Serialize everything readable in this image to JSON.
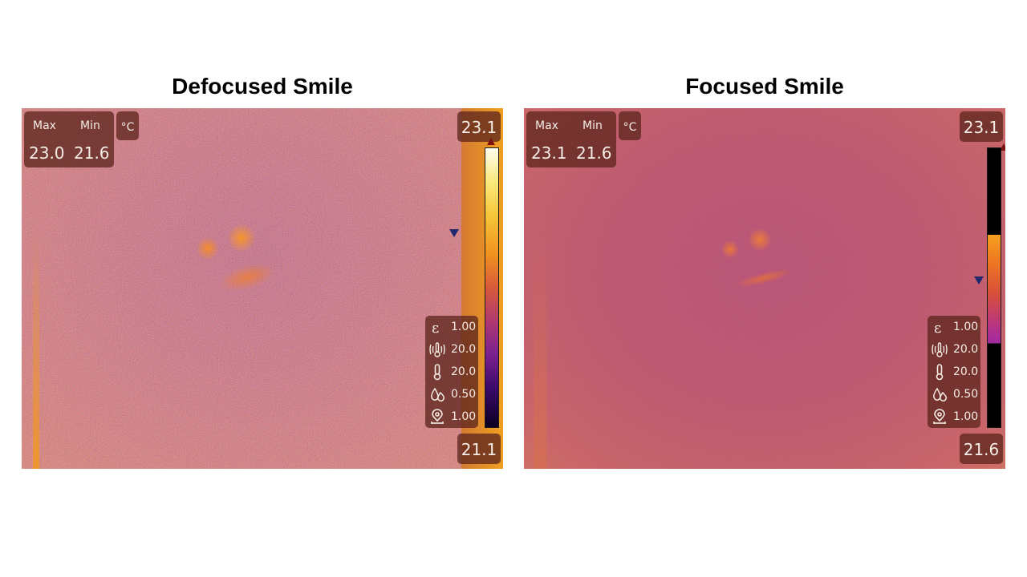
{
  "panels": [
    {
      "title": "Defocused Smile",
      "max_label": "Max",
      "min_label": "Min",
      "max_value": "23.0",
      "min_value": "21.6",
      "unit": "°C",
      "scale_top": "23.1",
      "scale_bottom": "21.1",
      "params": [
        {
          "icon": "emissivity-icon",
          "value": "1.00"
        },
        {
          "icon": "reflected-temperature-icon",
          "value": "20.0"
        },
        {
          "icon": "atmospheric-temperature-icon",
          "value": "20.0"
        },
        {
          "icon": "humidity-icon",
          "value": "0.50"
        },
        {
          "icon": "distance-icon",
          "value": "1.00"
        }
      ]
    },
    {
      "title": "Focused Smile",
      "max_label": "Max",
      "min_label": "Min",
      "max_value": "23.1",
      "min_value": "21.6",
      "unit": "°C",
      "scale_top": "23.1",
      "scale_bottom": "21.6",
      "params": [
        {
          "icon": "emissivity-icon",
          "value": "1.00"
        },
        {
          "icon": "reflected-temperature-icon",
          "value": "20.0"
        },
        {
          "icon": "atmospheric-temperature-icon",
          "value": "20.0"
        },
        {
          "icon": "humidity-icon",
          "value": "0.50"
        },
        {
          "icon": "distance-icon",
          "value": "1.00"
        }
      ]
    }
  ],
  "colors": {
    "defocused_background": "#c85a50",
    "focused_background": "#b84a62",
    "badge": "#5f261e",
    "marker": "#1f2a6e"
  }
}
